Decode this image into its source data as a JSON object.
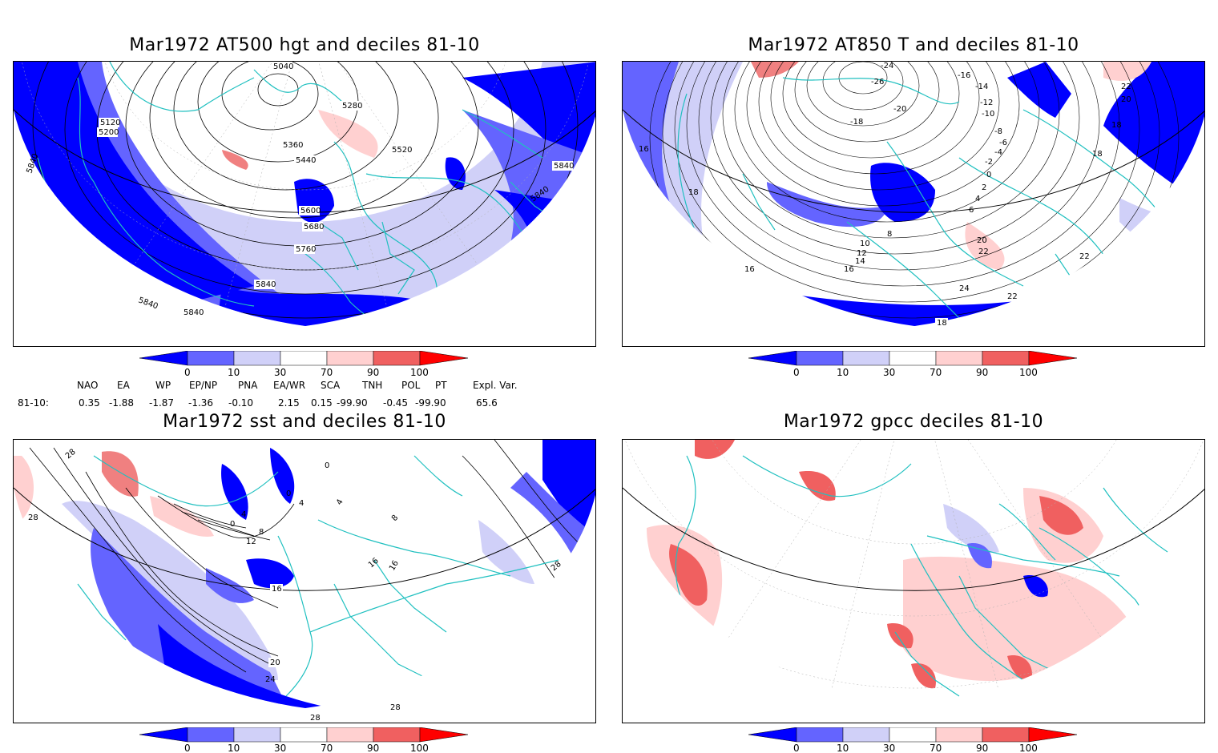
{
  "panels": [
    {
      "title": "Mar1972 AT500 hgt and deciles 81-10",
      "contour_labels": [
        "5040",
        "5120",
        "5200",
        "5280",
        "5360",
        "5440",
        "5520",
        "5600",
        "5680",
        "5760",
        "5840",
        "5840",
        "5840",
        "5840",
        "5840",
        "5840"
      ]
    },
    {
      "title": "Mar1972 AT850 T and deciles 81-10",
      "contour_labels": [
        "-26",
        "-24",
        "-20",
        "-18",
        "-16",
        "-14",
        "-12",
        "-10",
        "-8",
        "-6",
        "-4",
        "-2",
        "0",
        "2",
        "4",
        "6",
        "8",
        "10",
        "12",
        "14",
        "16",
        "16",
        "16",
        "18",
        "18",
        "18",
        "18",
        "20",
        "20",
        "22",
        "22",
        "22",
        "24",
        "22"
      ]
    },
    {
      "title": "Mar1972 sst and deciles 81-10",
      "contour_labels": [
        "28",
        "28",
        "28",
        "0",
        "0",
        "4",
        "8",
        "12",
        "16",
        "16",
        "16",
        "20",
        "24",
        "28",
        "28",
        "8",
        "4",
        "0",
        "4"
      ]
    },
    {
      "title": "Mar1972 gpcc deciles 81-10",
      "contour_labels": []
    }
  ],
  "colorbar": {
    "ticks": [
      "0",
      "10",
      "30",
      "70",
      "90",
      "100"
    ],
    "colors": [
      "#0000ff",
      "#6464ff",
      "#d0d0f8",
      "#ffffff",
      "#ffd0d0",
      "#f06060",
      "#ff0000"
    ]
  },
  "indices": {
    "row_label": "81-10:",
    "headers": [
      "NAO",
      "EA",
      "WP",
      "EP/NP",
      "PNA",
      "EA/WR",
      "SCA",
      "TNH",
      "POL",
      "PT",
      "Expl. Var."
    ],
    "values": [
      "0.35",
      "-1.88",
      "-1.87",
      "-1.36",
      "-0.10",
      "2.15",
      "0.15",
      "-99.90",
      "-0.45",
      "-99.90",
      "65.6"
    ]
  }
}
